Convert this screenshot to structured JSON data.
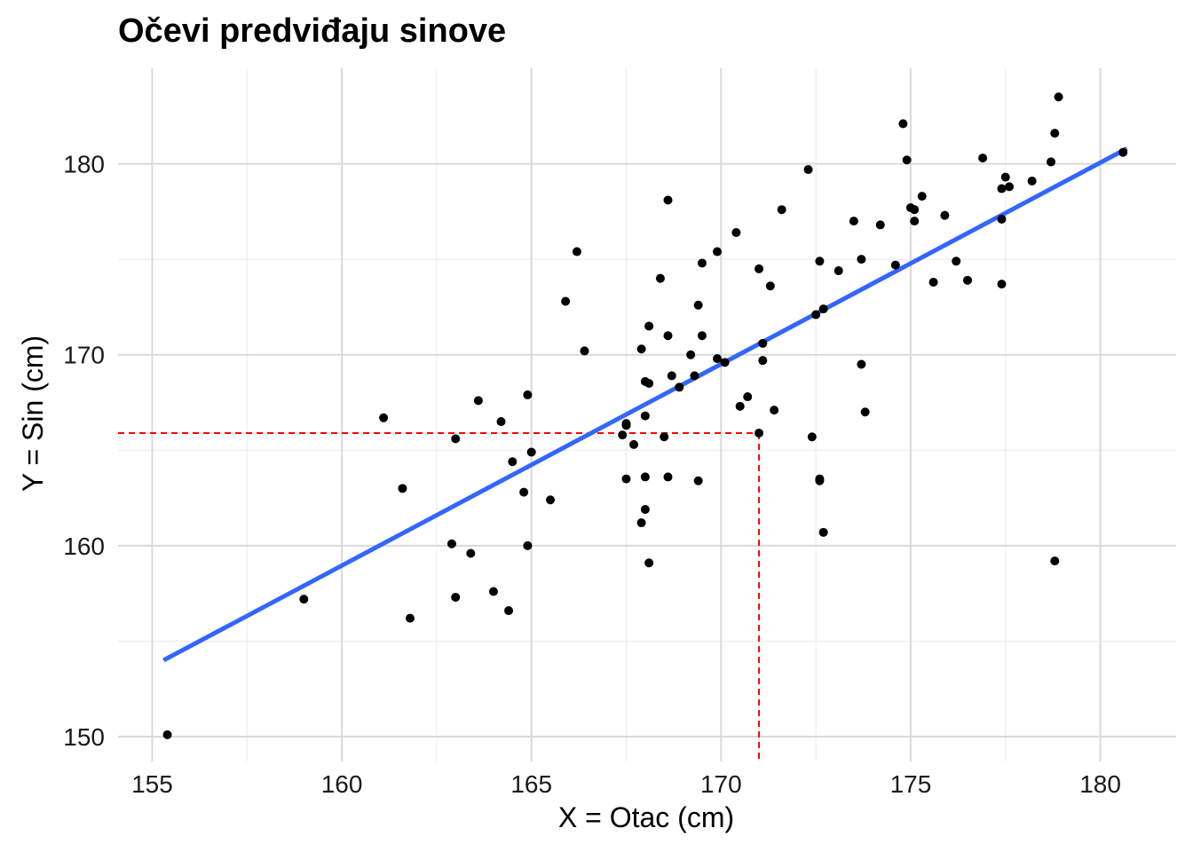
{
  "chart_data": {
    "type": "scatter",
    "title": "Očevi predviđaju sinove",
    "xlabel": "X = Otac (cm)",
    "ylabel": "Y = Sin (cm)",
    "xlim": [
      154.1,
      182.0
    ],
    "ylim": [
      148.7,
      185.0
    ],
    "xticks": [
      155,
      160,
      165,
      170,
      175,
      180
    ],
    "yticks": [
      150,
      160,
      170,
      180
    ],
    "grid": true,
    "points": [
      [
        155.4,
        150.1
      ],
      [
        159.0,
        157.2
      ],
      [
        161.1,
        166.7
      ],
      [
        161.6,
        163.0
      ],
      [
        161.8,
        156.2
      ],
      [
        162.9,
        160.1
      ],
      [
        163.0,
        165.6
      ],
      [
        163.0,
        157.3
      ],
      [
        163.4,
        159.6
      ],
      [
        163.6,
        167.6
      ],
      [
        164.0,
        157.6
      ],
      [
        164.2,
        166.5
      ],
      [
        164.4,
        156.6
      ],
      [
        164.5,
        164.4
      ],
      [
        164.8,
        162.8
      ],
      [
        164.9,
        167.9
      ],
      [
        164.9,
        160.0
      ],
      [
        165.0,
        164.9
      ],
      [
        165.5,
        162.4
      ],
      [
        165.9,
        172.8
      ],
      [
        166.2,
        175.4
      ],
      [
        166.4,
        170.2
      ],
      [
        167.4,
        165.8
      ],
      [
        167.5,
        166.3
      ],
      [
        167.5,
        166.4
      ],
      [
        167.5,
        163.5
      ],
      [
        167.7,
        165.3
      ],
      [
        167.9,
        170.3
      ],
      [
        167.9,
        161.2
      ],
      [
        168.0,
        168.6
      ],
      [
        168.0,
        166.8
      ],
      [
        168.0,
        163.6
      ],
      [
        168.0,
        161.9
      ],
      [
        168.1,
        171.5
      ],
      [
        168.1,
        168.5
      ],
      [
        168.1,
        159.1
      ],
      [
        168.4,
        174.0
      ],
      [
        168.5,
        165.7
      ],
      [
        168.6,
        178.1
      ],
      [
        168.6,
        171.0
      ],
      [
        168.6,
        163.6
      ],
      [
        168.7,
        168.9
      ],
      [
        168.9,
        168.3
      ],
      [
        169.2,
        170.0
      ],
      [
        169.3,
        168.9
      ],
      [
        169.4,
        172.6
      ],
      [
        169.4,
        163.4
      ],
      [
        169.5,
        174.8
      ],
      [
        169.5,
        171.0
      ],
      [
        169.9,
        175.4
      ],
      [
        169.9,
        169.8
      ],
      [
        170.1,
        169.6
      ],
      [
        170.4,
        176.4
      ],
      [
        170.5,
        167.3
      ],
      [
        170.7,
        167.8
      ],
      [
        171.0,
        174.5
      ],
      [
        171.0,
        165.9
      ],
      [
        171.1,
        170.6
      ],
      [
        171.1,
        169.7
      ],
      [
        171.3,
        173.6
      ],
      [
        171.4,
        167.1
      ],
      [
        171.6,
        177.6
      ],
      [
        172.3,
        179.7
      ],
      [
        172.4,
        165.7
      ],
      [
        172.5,
        172.1
      ],
      [
        172.6,
        174.9
      ],
      [
        172.6,
        163.5
      ],
      [
        172.6,
        163.4
      ],
      [
        172.7,
        172.4
      ],
      [
        172.7,
        160.7
      ],
      [
        173.1,
        174.4
      ],
      [
        173.5,
        177.0
      ],
      [
        173.7,
        175.0
      ],
      [
        173.7,
        169.5
      ],
      [
        173.8,
        167.0
      ],
      [
        174.2,
        176.8
      ],
      [
        174.6,
        174.7
      ],
      [
        174.8,
        182.1
      ],
      [
        174.9,
        180.2
      ],
      [
        175.0,
        177.7
      ],
      [
        175.1,
        177.6
      ],
      [
        175.1,
        177.0
      ],
      [
        175.3,
        178.3
      ],
      [
        175.6,
        173.8
      ],
      [
        175.9,
        177.3
      ],
      [
        176.2,
        174.9
      ],
      [
        176.5,
        173.9
      ],
      [
        176.9,
        180.3
      ],
      [
        177.4,
        177.1
      ],
      [
        177.4,
        173.7
      ],
      [
        177.4,
        178.7
      ],
      [
        177.5,
        179.3
      ],
      [
        177.6,
        178.8
      ],
      [
        178.2,
        179.1
      ],
      [
        178.7,
        180.1
      ],
      [
        178.8,
        181.6
      ],
      [
        178.8,
        159.2
      ],
      [
        178.9,
        183.5
      ],
      [
        180.6,
        180.6
      ]
    ],
    "regression_line": {
      "x": [
        155.3,
        180.7
      ],
      "y": [
        154.0,
        180.8
      ],
      "color": "#3366ff"
    },
    "reference_lines": {
      "x": 171.0,
      "y": 165.9,
      "color": "#ff0000",
      "style": "dashed"
    },
    "point_color": "#000000"
  }
}
